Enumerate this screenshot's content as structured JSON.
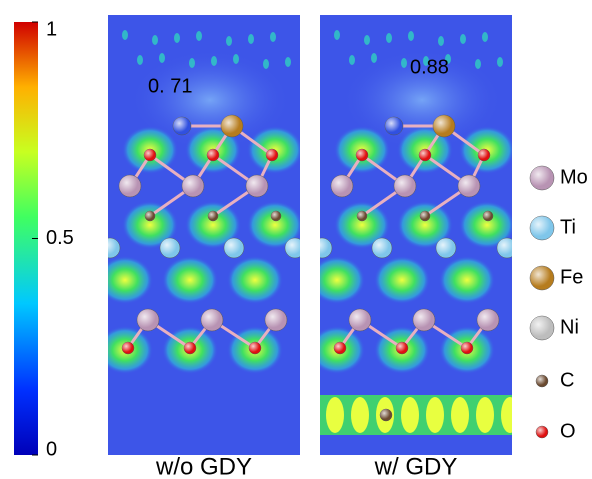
{
  "colorbar": {
    "ticks": [
      0,
      0.5,
      1
    ],
    "lim": [
      0,
      1
    ]
  },
  "panels": [
    {
      "label": "w/o GDY",
      "annotation": "0. 71"
    },
    {
      "label": "w/ GDY",
      "annotation": "0.88"
    }
  ],
  "legend": [
    {
      "name": "Mo",
      "color": "#b893b3"
    },
    {
      "name": "Ti",
      "color": "#7fc6ea"
    },
    {
      "name": "Fe",
      "color": "#b67c1e"
    },
    {
      "name": "Ni",
      "color": "#bdbdbd"
    },
    {
      "name": "C",
      "color": "#6b4a30"
    },
    {
      "name": "O",
      "color": "#e01010"
    }
  ]
}
